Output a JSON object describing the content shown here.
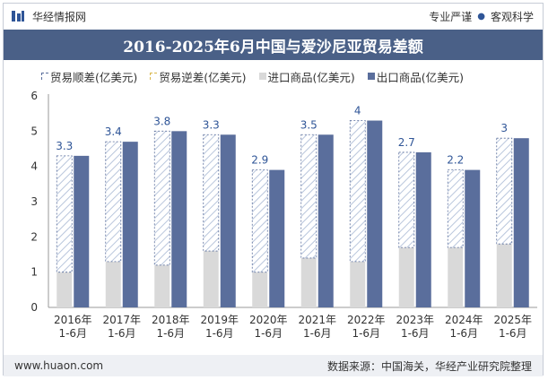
{
  "header": {
    "brand": "华经情报网",
    "tags": [
      "专业严谨",
      "客观科学"
    ]
  },
  "footer": {
    "website": "www.huaon.com",
    "source": "数据来源：中国海关，华经产业研究院整理"
  },
  "colors": {
    "header_bg": "#4a6087",
    "export": "#5a6e9c",
    "import": "#d9d9d9",
    "surplus": "#a9bbd6"
  },
  "chart_data": {
    "type": "bar",
    "title": "2016-2025年6月中国与爱沙尼亚贸易差额",
    "categories": [
      "2016年\n1-6月",
      "2017年\n1-6月",
      "2018年\n1-6月",
      "2019年\n1-6月",
      "2020年\n1-6月",
      "2021年\n1-6月",
      "2022年\n1-6月",
      "2023年\n1-6月",
      "2024年\n1-6月",
      "2025年\n1-6月"
    ],
    "ylim": [
      0,
      6
    ],
    "yticks": [
      0,
      1,
      2,
      3,
      4,
      5,
      6
    ],
    "legend": [
      "贸易顺差(亿美元)",
      "贸易逆差(亿美元)",
      "进口商品(亿美元)",
      "出口商品(亿美元)"
    ],
    "series": [
      {
        "name": "贸易顺差(亿美元)",
        "values": [
          3.3,
          3.4,
          3.8,
          3.3,
          2.9,
          3.5,
          4,
          2.7,
          2.2,
          3
        ]
      },
      {
        "name": "贸易逆差(亿美元)",
        "values": [
          0,
          0,
          0,
          0,
          0,
          0,
          0,
          0,
          0,
          0
        ]
      },
      {
        "name": "进口商品(亿美元)",
        "values": [
          1.0,
          1.3,
          1.2,
          1.6,
          1.0,
          1.4,
          1.3,
          1.7,
          1.7,
          1.8
        ]
      },
      {
        "name": "出口商品(亿美元)",
        "values": [
          4.3,
          4.7,
          5.0,
          4.9,
          3.9,
          4.9,
          5.3,
          4.4,
          3.9,
          4.8
        ]
      }
    ],
    "data_labels": [
      "3.3",
      "3.4",
      "3.8",
      "3.3",
      "2.9",
      "3.5",
      "4",
      "2.7",
      "2.2",
      "3"
    ]
  }
}
